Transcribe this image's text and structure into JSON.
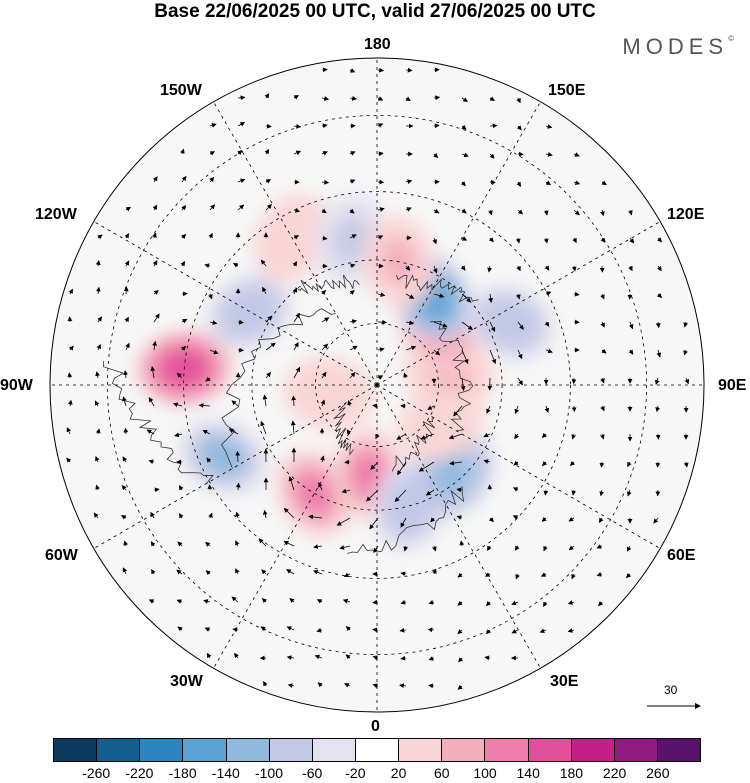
{
  "title": "Base 22/06/2025 00 UTC, valid 27/06/2025 00 UTC",
  "brand": "MODES",
  "brand_mark": "©",
  "longitude_labels": {
    "lon_180": "180",
    "lon_150e": "150E",
    "lon_120e": "120E",
    "lon_90e": "90E",
    "lon_60e": "60E",
    "lon_30e": "30E",
    "lon_0": "0",
    "lon_30w": "30W",
    "lon_60w": "60W",
    "lon_90w": "90W",
    "lon_120w": "120W",
    "lon_150w": "150W"
  },
  "reference_vector": {
    "label": "30"
  },
  "colorbar": {
    "colors": [
      "#0b3a5e",
      "#13608f",
      "#2d86bd",
      "#5aa3d3",
      "#8fb9de",
      "#c2c9e6",
      "#e4e1f0",
      "#ffffff",
      "#f9d6d6",
      "#f4afbd",
      "#ee7eaa",
      "#e44f9b",
      "#c81e8a",
      "#8e1a7e",
      "#5a136d"
    ],
    "tick_labels": [
      "-260",
      "-220",
      "-180",
      "-140",
      "-100",
      "-60",
      "-20",
      "20",
      "60",
      "100",
      "140",
      "180",
      "220",
      "260"
    ]
  },
  "anomaly_centers": [
    {
      "lon": -95,
      "lat": 45,
      "value": 220
    },
    {
      "lon": -65,
      "lat": 50,
      "value": -150
    },
    {
      "lon": -30,
      "lat": 60,
      "value": 150
    },
    {
      "lon": -5,
      "lat": 68,
      "value": 130
    },
    {
      "lon": 15,
      "lat": 60,
      "value": -100
    },
    {
      "lon": 40,
      "lat": 62,
      "value": -160
    },
    {
      "lon": 60,
      "lat": 72,
      "value": 60
    },
    {
      "lon": 100,
      "lat": 72,
      "value": 80
    },
    {
      "lon": 130,
      "lat": 70,
      "value": 120
    },
    {
      "lon": 148,
      "lat": 65,
      "value": -200
    },
    {
      "lon": 115,
      "lat": 55,
      "value": -100
    },
    {
      "lon": -120,
      "lat": 55,
      "value": -120
    },
    {
      "lon": -150,
      "lat": 50,
      "value": 60
    },
    {
      "lon": -170,
      "lat": 55,
      "value": -80
    },
    {
      "lon": 170,
      "lat": 60,
      "value": 80
    },
    {
      "lon": -80,
      "lat": 78,
      "value": 60
    }
  ]
}
